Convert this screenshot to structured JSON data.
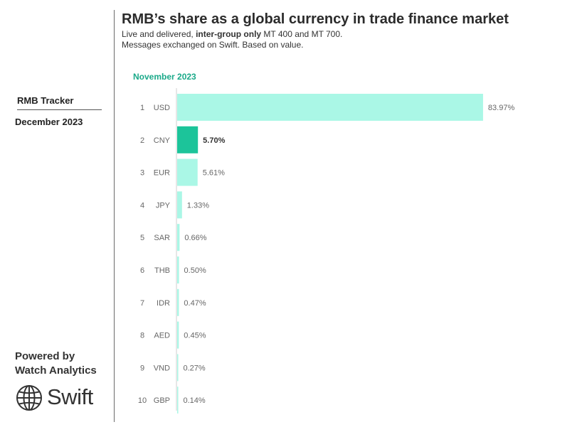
{
  "sidebar": {
    "tracker_title": "RMB Tracker",
    "tracker_date": "December 2023",
    "powered_line1": "Powered by",
    "powered_line2": "Watch Analytics",
    "brand": "Swift"
  },
  "header": {
    "title": "RMB’s share as a global currency in trade finance market",
    "subtitle_prefix": "Live and delivered, ",
    "subtitle_bold": "inter-group only",
    "subtitle_suffix": " MT 400 and MT 700.",
    "subtitle_line2": "Messages exchanged on Swift. Based on value."
  },
  "chart_data": {
    "type": "bar",
    "orientation": "horizontal",
    "title": "RMB’s share as a global currency in trade finance market",
    "period_label": "November 2023",
    "ranks": [
      "1",
      "2",
      "3",
      "4",
      "5",
      "6",
      "7",
      "8",
      "9",
      "10"
    ],
    "categories": [
      "USD",
      "CNY",
      "EUR",
      "JPY",
      "SAR",
      "THB",
      "IDR",
      "AED",
      "VND",
      "GBP"
    ],
    "values": [
      83.97,
      5.7,
      5.61,
      1.33,
      0.66,
      0.5,
      0.47,
      0.45,
      0.27,
      0.14
    ],
    "value_labels": [
      "83.97%",
      "5.70%",
      "5.61%",
      "1.33%",
      "0.66%",
      "0.50%",
      "0.47%",
      "0.45%",
      "0.27%",
      "0.14%"
    ],
    "highlight": "CNY",
    "xlim": [
      0,
      100
    ],
    "grid": false,
    "colors": {
      "bar": "#aaf7e6",
      "highlight": "#1cc49a",
      "axis": "#cfcfcf",
      "period": "#1aa989"
    }
  }
}
